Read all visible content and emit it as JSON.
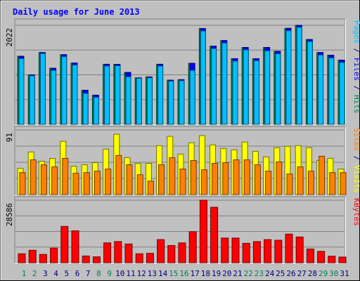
{
  "chart_data": {
    "type": "bar",
    "title": "Daily usage for June 2013",
    "categories": [
      "1",
      "2",
      "3",
      "4",
      "5",
      "6",
      "7",
      "8",
      "9",
      "10",
      "11",
      "12",
      "13",
      "14",
      "15",
      "16",
      "17",
      "18",
      "19",
      "20",
      "21",
      "22",
      "23",
      "24",
      "25",
      "26",
      "27",
      "28",
      "29",
      "30",
      "31"
    ],
    "weekend_days": [
      "1",
      "2",
      "8",
      "9",
      "15",
      "16",
      "22",
      "23",
      "29",
      "30"
    ],
    "panels": [
      {
        "id": "hits",
        "ymax": 2022,
        "ymax_label": "2022",
        "side_label": [
          {
            "text": "Pages",
            "color": "#00c0ff"
          },
          {
            "text": " / ",
            "color": "#000080"
          },
          {
            "text": "Files",
            "color": "#0000ff"
          },
          {
            "text": " / ",
            "color": "#000080"
          },
          {
            "text": "Hits",
            "color": "#00805c"
          }
        ],
        "series": [
          {
            "name": "Hits",
            "color": "#00805c",
            "values": [
              1391,
              1011,
              1466,
              1145,
              1422,
              1251,
              696,
              596,
              1227,
              1226,
              1061,
              949,
              969,
              1227,
              902,
              912,
              1245,
              1956,
              1595,
              1711,
              1341,
              1570,
              1341,
              1570,
              1491,
              1960,
              2022,
              1731,
              1466,
              1411,
              1311
            ]
          },
          {
            "name": "Files",
            "color": "#0000ff",
            "values": [
              1391,
              1011,
              1466,
              1145,
              1422,
              1251,
              696,
              596,
              1227,
              1226,
              1061,
              949,
              969,
              1227,
              902,
              912,
              1245,
              1956,
              1595,
              1711,
              1341,
              1570,
              1341,
              1570,
              1491,
              1960,
              2022,
              1731,
              1466,
              1411,
              1311
            ]
          },
          {
            "name": "Pages",
            "color": "#00c0ff",
            "values": [
              1341,
              991,
              1446,
              1101,
              1381,
              1211,
              631,
              551,
              1191,
              1196,
              971,
              941,
              951,
              1191,
              881,
              891,
              1101,
              1906,
              1546,
              1660,
              1291,
              1522,
              1301,
              1501,
              1441,
              1911,
              1982,
              1691,
              1416,
              1356,
              1263
            ]
          }
        ]
      },
      {
        "id": "visits",
        "ymax": 91,
        "ymax_label": "91",
        "side_label": [
          {
            "text": "Sites",
            "color": "#ff8000"
          },
          {
            "text": " / ",
            "color": "#000080"
          },
          {
            "text": "Visits",
            "color": "#ffff00"
          }
        ],
        "series": [
          {
            "name": "Visits",
            "color": "#ffff00",
            "values": [
              37,
              60,
              47,
              51,
              75,
              40,
              42,
              45,
              64,
              85,
              52,
              44,
              44,
              69,
              82,
              57,
              73,
              83,
              70,
              65,
              63,
              74,
              61,
              53,
              66,
              68,
              69,
              66,
              48,
              51,
              36
            ]
          },
          {
            "name": "Sites",
            "color": "#ff8000",
            "values": [
              31,
              49,
              42,
              39,
              51,
              30,
              31,
              33,
              36,
              55,
              42,
              28,
              19,
              42,
              52,
              36,
              48,
              35,
              44,
              45,
              49,
              49,
              42,
              33,
              46,
              29,
              39,
              33,
              54,
              31,
              31
            ]
          }
        ]
      },
      {
        "id": "kbytes",
        "ymax": 28586,
        "ymax_label": "28586",
        "side_label": [
          {
            "text": "KBytes",
            "color": "#ff0000"
          }
        ],
        "series": [
          {
            "name": "KBytes",
            "color": "#ff0000",
            "values": [
              4094,
              5697,
              3794,
              6697,
              16590,
              14582,
              3094,
              2694,
              9075,
              9677,
              8575,
              4094,
              4294,
              10576,
              7876,
              9075,
              14180,
              28586,
              25389,
              11276,
              11276,
              8875,
              9677,
              10576,
              10275,
              13088,
              11779,
              6294,
              5196,
              2993,
              2594
            ]
          }
        ]
      }
    ]
  }
}
